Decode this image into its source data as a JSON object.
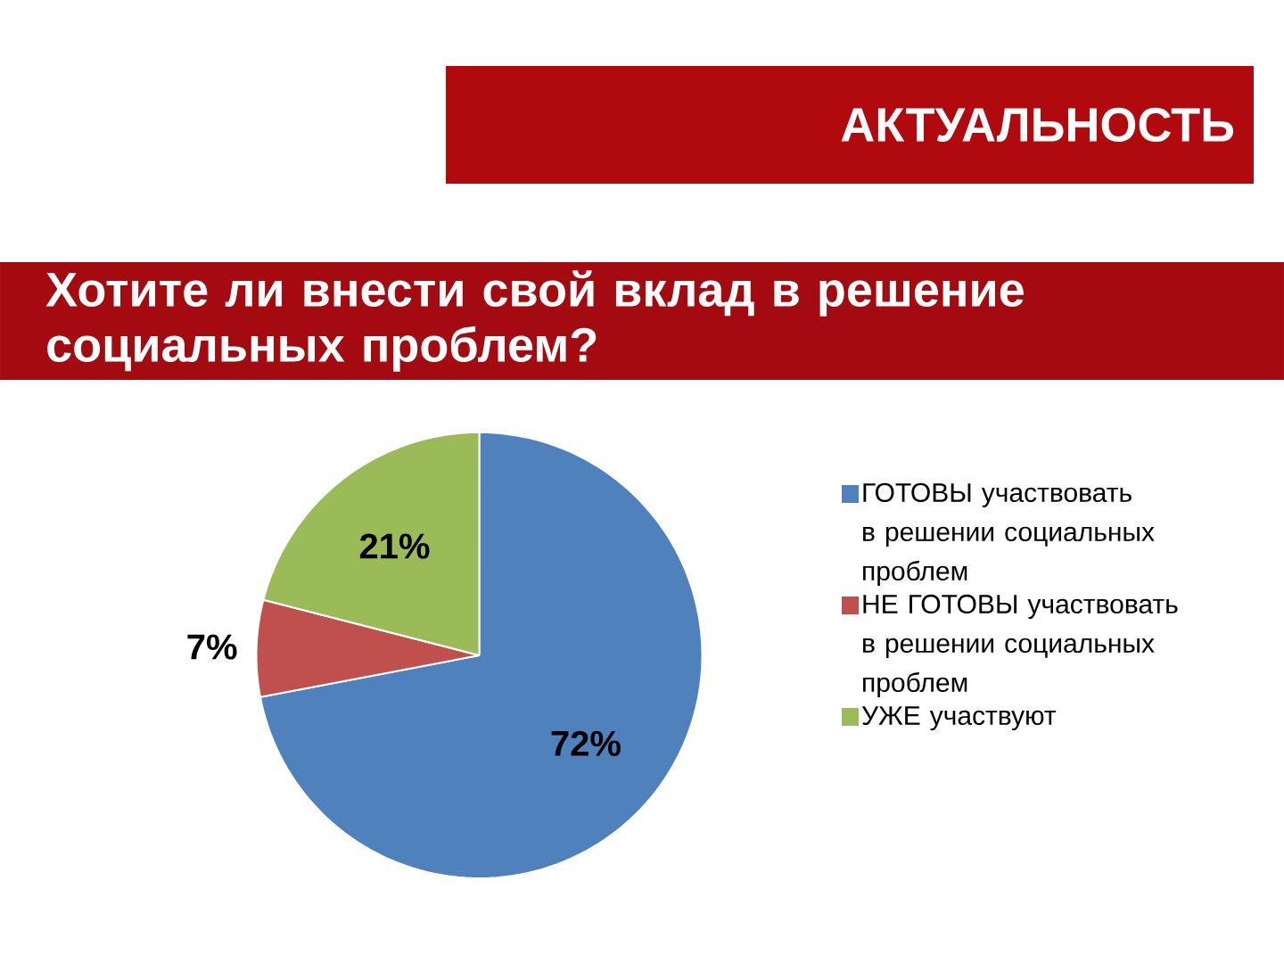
{
  "chart_data": {
    "type": "pie",
    "title": "Хотите ли внести свой вклад в решение социальных проблем?",
    "annotations": [
      "АКТУАЛЬНОСТЬ"
    ],
    "categories": [
      "ГОТОВЫ участвовать в решении социальных проблем",
      "НЕ ГОТОВЫ участвовать в решении социальных проблем",
      "УЖЕ участвуют"
    ],
    "values": [
      72,
      7,
      21
    ],
    "colors": [
      "#4f81bd",
      "#c0504d",
      "#9bbb59"
    ],
    "value_labels": [
      "72%",
      "7%",
      "21%"
    ],
    "legend": "right"
  }
}
